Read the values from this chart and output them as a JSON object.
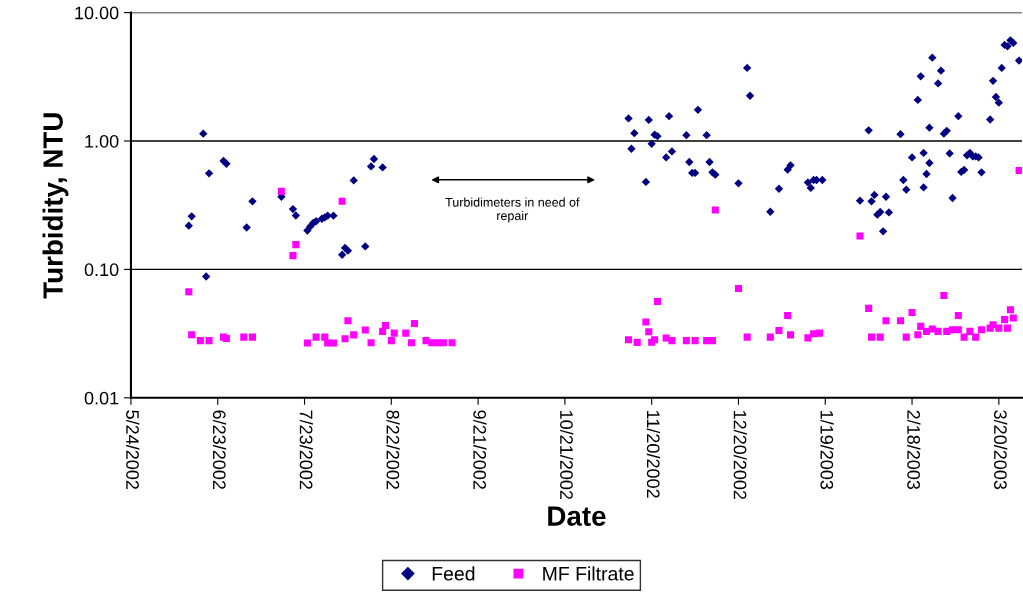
{
  "chart_data": {
    "type": "scatter",
    "xlabel": "Date",
    "ylabel": "Turbidity, NTU",
    "log": "y",
    "xlim": [
      "2002-05-24",
      "2003-03-28"
    ],
    "ylim": [
      0.01,
      10
    ],
    "xticks": [
      {
        "value": "2002-05-24",
        "label": "5/24/2002"
      },
      {
        "value": "2002-06-23",
        "label": "6/23/2002"
      },
      {
        "value": "2002-07-23",
        "label": "7/23/2002"
      },
      {
        "value": "2002-08-22",
        "label": "8/22/2002"
      },
      {
        "value": "2002-09-21",
        "label": "9/21/2002"
      },
      {
        "value": "2002-10-21",
        "label": "10/21/2002"
      },
      {
        "value": "2002-11-20",
        "label": "11/20/2002"
      },
      {
        "value": "2002-12-20",
        "label": "12/20/2002"
      },
      {
        "value": "2003-01-19",
        "label": "1/19/2003"
      },
      {
        "value": "2003-02-18",
        "label": "2/18/2003"
      },
      {
        "value": "2003-03-20",
        "label": "3/20/2003"
      }
    ],
    "yticks": [
      {
        "value": 0.01,
        "label": "0.01"
      },
      {
        "value": 0.1,
        "label": "0.10"
      },
      {
        "value": 1,
        "label": "1.00"
      },
      {
        "value": 10,
        "label": "10.00"
      }
    ],
    "grid": "y",
    "legend": "bottom",
    "annotations": [
      "Turbidimeters in need of\nrepair"
    ],
    "series": [
      {
        "name": "Feed",
        "color": "#000080",
        "marker": "diamond",
        "x": [
          "2002-06-18",
          "2002-06-20",
          "2002-06-14",
          "2002-06-13",
          "2002-06-19",
          "2002-06-25",
          "2002-06-26",
          "2002-07-05",
          "2002-07-03",
          "2002-07-15",
          "2002-07-19",
          "2002-07-20",
          "2002-07-24",
          "2002-07-25",
          "2002-07-26",
          "2002-07-27",
          "2002-07-29",
          "2002-07-30",
          "2002-07-31",
          "2002-08-02",
          "2002-08-05",
          "2002-08-06",
          "2002-08-07",
          "2002-08-13",
          "2002-08-09",
          "2002-08-15",
          "2002-08-16",
          "2002-08-19",
          "2002-11-12",
          "2002-11-13",
          "2002-11-14",
          "2002-11-18",
          "2002-11-19",
          "2002-11-20",
          "2002-11-21",
          "2002-11-22",
          "2002-11-25",
          "2002-11-26",
          "2002-11-27",
          "2002-12-02",
          "2002-12-03",
          "2002-12-04",
          "2002-12-05",
          "2002-12-06",
          "2002-12-09",
          "2002-12-10",
          "2002-12-11",
          "2002-12-12",
          "2002-12-20",
          "2002-12-23",
          "2002-12-24",
          "2002-12-31",
          "2003-01-03",
          "2003-01-06",
          "2003-01-07",
          "2003-01-13",
          "2003-01-14",
          "2003-01-15",
          "2003-01-16",
          "2003-01-18",
          "2003-01-31",
          "2003-02-03",
          "2003-02-04",
          "2003-02-05",
          "2003-02-06",
          "2003-02-07",
          "2003-02-08",
          "2003-02-09",
          "2003-02-10",
          "2003-02-14",
          "2003-02-15",
          "2003-02-16",
          "2003-02-18",
          "2003-02-20",
          "2003-02-21",
          "2003-02-22",
          "2003-02-22",
          "2003-02-23",
          "2003-02-24",
          "2003-02-24",
          "2003-02-25",
          "2003-02-27",
          "2003-02-28",
          "2003-03-01",
          "2003-03-02",
          "2003-03-03",
          "2003-03-04",
          "2003-03-06",
          "2003-03-07",
          "2003-03-08",
          "2003-03-09",
          "2003-03-10",
          "2003-03-11",
          "2003-03-12",
          "2003-03-13",
          "2003-03-14",
          "2003-03-17",
          "2003-03-18",
          "2003-03-19",
          "2003-03-20",
          "2003-03-21",
          "2003-03-22",
          "2003-03-23",
          "2003-03-24",
          "2003-03-25",
          "2003-03-27"
        ],
        "values": [
          1.14,
          0.56,
          0.259,
          0.219,
          0.088,
          0.7,
          0.665,
          0.339,
          0.212,
          0.368,
          0.295,
          0.263,
          0.201,
          0.216,
          0.23,
          0.237,
          0.248,
          0.254,
          0.262,
          0.262,
          0.13,
          0.147,
          0.14,
          0.151,
          0.493,
          0.634,
          0.724,
          0.623,
          1.5,
          0.87,
          1.15,
          0.48,
          1.46,
          0.95,
          1.12,
          1.09,
          0.745,
          1.56,
          0.83,
          1.11,
          0.686,
          0.564,
          0.564,
          1.75,
          1.11,
          0.686,
          0.57,
          0.547,
          0.468,
          3.71,
          2.25,
          0.281,
          0.425,
          0.598,
          0.646,
          0.476,
          0.431,
          0.497,
          0.497,
          0.497,
          0.343,
          1.21,
          0.339,
          0.38,
          0.267,
          0.28,
          0.198,
          0.368,
          0.278,
          1.13,
          0.497,
          0.418,
          0.745,
          2.09,
          3.19,
          0.807,
          0.435,
          0.553,
          1.27,
          0.674,
          4.46,
          2.81,
          3.53,
          1.14,
          1.2,
          0.8,
          0.36,
          1.56,
          0.574,
          0.595,
          0.773,
          0.807,
          0.759,
          0.759,
          0.745,
          0.57,
          1.47,
          2.94,
          2.2,
          1.99,
          3.71,
          5.6,
          5.46,
          6.08,
          5.81,
          4.23
        ]
      },
      {
        "name": "MF Filtrate",
        "color": "#ff00ff",
        "marker": "square",
        "x": [
          "2002-06-13",
          "2002-07-15",
          "2002-07-20",
          "2002-07-19",
          "2002-08-05",
          "2002-06-14",
          "2002-06-17",
          "2002-06-20",
          "2002-06-25",
          "2002-06-26",
          "2002-07-02",
          "2002-07-05",
          "2002-07-24",
          "2002-07-27",
          "2002-07-30",
          "2002-07-31",
          "2002-08-02",
          "2002-08-06",
          "2002-08-07",
          "2002-08-09",
          "2002-08-13",
          "2002-08-15",
          "2002-08-19",
          "2002-08-20",
          "2002-08-22",
          "2002-08-23",
          "2002-08-27",
          "2002-08-29",
          "2002-08-30",
          "2002-09-03",
          "2002-09-05",
          "2002-09-07",
          "2002-09-09",
          "2002-09-12",
          "2002-12-12",
          "2002-12-20",
          "2002-11-22",
          "2002-11-18",
          "2002-11-19",
          "2003-01-06",
          "2003-01-03",
          "2003-01-07",
          "2002-12-31",
          "2002-11-12",
          "2002-11-15",
          "2002-11-20",
          "2002-11-21",
          "2002-11-25",
          "2002-11-27",
          "2002-12-02",
          "2002-12-05",
          "2002-12-09",
          "2002-12-11",
          "2002-12-23",
          "2003-01-13",
          "2003-01-15",
          "2003-01-17",
          "2003-01-31",
          "2003-02-03",
          "2003-02-09",
          "2003-02-14",
          "2003-02-18",
          "2003-03-01",
          "2003-03-06",
          "2003-03-24",
          "2003-03-27",
          "2003-02-04",
          "2003-02-07",
          "2003-02-16",
          "2003-02-20",
          "2003-02-21",
          "2003-02-23",
          "2003-02-25",
          "2003-02-27",
          "2003-03-02",
          "2003-03-04",
          "2003-03-06",
          "2003-03-08",
          "2003-03-10",
          "2003-03-12",
          "2003-03-14",
          "2003-03-17",
          "2003-03-18",
          "2003-03-20",
          "2003-03-22",
          "2003-03-23",
          "2003-03-25"
        ],
        "values": [
          0.067,
          0.405,
          0.156,
          0.128,
          0.339,
          0.031,
          0.0279,
          0.0279,
          0.0297,
          0.029,
          0.0297,
          0.0297,
          0.0267,
          0.0297,
          0.0297,
          0.0267,
          0.0267,
          0.0288,
          0.0398,
          0.0309,
          0.0337,
          0.0268,
          0.0329,
          0.0366,
          0.0279,
          0.0319,
          0.0319,
          0.0268,
          0.0379,
          0.0279,
          0.0268,
          0.0268,
          0.0268,
          0.0268,
          0.29,
          0.0711,
          0.0562,
          0.0389,
          0.0327,
          0.0438,
          0.0334,
          0.0309,
          0.0297,
          0.0283,
          0.027,
          0.0271,
          0.0283,
          0.0292,
          0.0279,
          0.0279,
          0.0279,
          0.0279,
          0.0279,
          0.0297,
          0.0293,
          0.0315,
          0.0319,
          0.182,
          0.0497,
          0.0398,
          0.0398,
          0.0462,
          0.0627,
          0.0438,
          0.0485,
          0.59,
          0.0297,
          0.0297,
          0.0297,
          0.031,
          0.036,
          0.0329,
          0.0343,
          0.0329,
          0.0329,
          0.0339,
          0.0339,
          0.0297,
          0.0329,
          0.0297,
          0.0339,
          0.0349,
          0.0371,
          0.0349,
          0.0406,
          0.0349,
          0.0418
        ]
      }
    ]
  }
}
